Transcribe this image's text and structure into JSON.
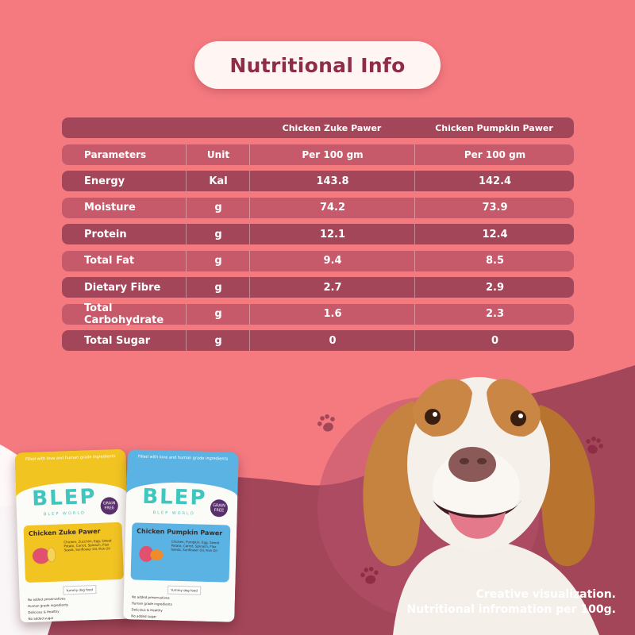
{
  "title": "Nutritional Info",
  "table": {
    "product_headers": [
      "Chicken Zuke Pawer",
      "Chicken Pumpkin Pawer"
    ],
    "column_headers": {
      "parameter": "Parameters",
      "unit": "Unit",
      "v1": "Per 100 gm",
      "v2": "Per 100 gm"
    },
    "rows": [
      {
        "parameter": "Energy",
        "unit": "Kal",
        "v1": "143.8",
        "v2": "142.4"
      },
      {
        "parameter": "Moisture",
        "unit": "g",
        "v1": "74.2",
        "v2": "73.9"
      },
      {
        "parameter": "Protein",
        "unit": "g",
        "v1": "12.1",
        "v2": "12.4"
      },
      {
        "parameter": "Total Fat",
        "unit": "g",
        "v1": "9.4",
        "v2": "8.5"
      },
      {
        "parameter": "Dietary Fibre",
        "unit": "g",
        "v1": "2.7",
        "v2": "2.9"
      },
      {
        "parameter": "Total Carbohydrate",
        "unit": "g",
        "v1": "1.6",
        "v2": "2.3"
      },
      {
        "parameter": "Total Sugar",
        "unit": "g",
        "v1": "0",
        "v2": "0"
      }
    ]
  },
  "footnote": {
    "line1": "Creative visualization.",
    "line2": "Nutritional infromation per 100g."
  },
  "packages": [
    {
      "tagline": "Filled with love and human grade ingredients",
      "logo": "BLEP",
      "sublogo": "BLEP WORLD",
      "badge": "GRAIN FREE",
      "name": "Chicken Zuke Pawer",
      "ingredients": "Chicken, Zucchini, Egg, Sweet Potato, Carrot, Spinach, Flax Seeds, Sunflower Oil, Fish Oil",
      "yummy": "Yummy dog food",
      "features": [
        "No added preservatives",
        "Human grade ingredients",
        "Delicious & Healthy",
        "No added sugar"
      ],
      "band_color": "#f2c422",
      "label_color": "#f2c422"
    },
    {
      "tagline": "Filled with love and human grade ingredients",
      "logo": "BLEP",
      "sublogo": "BLEP WORLD",
      "badge": "GRAIN FREE",
      "name": "Chicken Pumpkin Pawer",
      "ingredients": "Chicken, Pumpkin, Egg, Sweet Potato, Carrot, Spinach, Flax Seeds, Sunflower Oil, Fish Oil",
      "yummy": "Yummy dog food",
      "features": [
        "No added preservatives",
        "Human grade ingredients",
        "Delicious & Healthy",
        "No added sugar"
      ],
      "band_color": "#5ab3e2",
      "label_color": "#5ab3e2"
    }
  ],
  "colors": {
    "background": "#f47a80",
    "wave": "#a4465a",
    "row_dark": "#a4465a",
    "row_light": "#c75a6a",
    "title_text": "#8e2d45"
  }
}
